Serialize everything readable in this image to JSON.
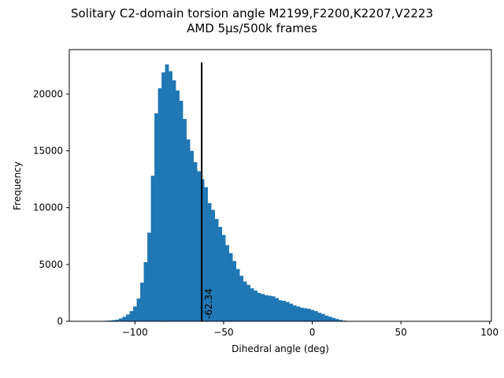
{
  "chart_data": {
    "type": "histogram",
    "title_line1": "Solitary C2-domain torsion angle M2199,F2200,K2207,V2223",
    "title_line2": "AMD 5μs/500k frames",
    "xlabel": "Dihedral angle (deg)",
    "ylabel": "Frequency",
    "xlim": [
      -137,
      101
    ],
    "ylim": [
      0,
      23900
    ],
    "xticks": [
      -100,
      -50,
      0,
      50,
      100
    ],
    "xtick_labels": [
      "−100",
      "−50",
      "0",
      "50",
      "100"
    ],
    "yticks": [
      0,
      5000,
      10000,
      15000,
      20000
    ],
    "ytick_labels": [
      "0",
      "5000",
      "10000",
      "15000",
      "20000"
    ],
    "bar_color": "#1f77b4",
    "bin_width": 2.0,
    "bins_start": -125.0,
    "values": [
      10,
      15,
      20,
      35,
      50,
      70,
      100,
      150,
      250,
      400,
      600,
      900,
      1300,
      2000,
      3400,
      5200,
      7800,
      12800,
      18300,
      20500,
      21900,
      22600,
      22000,
      21200,
      20300,
      19400,
      17800,
      16000,
      15000,
      14000,
      13200,
      12500,
      11800,
      10400,
      9800,
      9000,
      8300,
      7600,
      6700,
      6000,
      5300,
      4600,
      4000,
      3500,
      3200,
      2900,
      2700,
      2500,
      2400,
      2300,
      2250,
      2200,
      2050,
      1850,
      1800,
      1700,
      1550,
      1400,
      1300,
      1200,
      1150,
      1100,
      1000,
      900,
      750,
      650,
      500,
      400,
      300,
      200,
      120,
      60,
      30,
      20,
      10,
      5
    ],
    "vline_x": -62.34,
    "vline_color": "#000000",
    "vline_label": "-62.34"
  }
}
